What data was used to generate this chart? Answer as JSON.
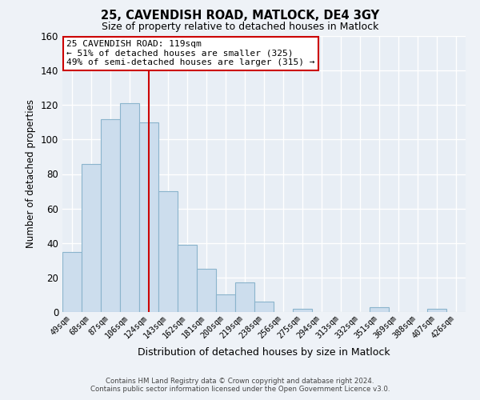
{
  "title": "25, CAVENDISH ROAD, MATLOCK, DE4 3GY",
  "subtitle": "Size of property relative to detached houses in Matlock",
  "xlabel": "Distribution of detached houses by size in Matlock",
  "ylabel": "Number of detached properties",
  "categories": [
    "49sqm",
    "68sqm",
    "87sqm",
    "106sqm",
    "124sqm",
    "143sqm",
    "162sqm",
    "181sqm",
    "200sqm",
    "219sqm",
    "238sqm",
    "256sqm",
    "275sqm",
    "294sqm",
    "313sqm",
    "332sqm",
    "351sqm",
    "369sqm",
    "388sqm",
    "407sqm",
    "426sqm"
  ],
  "values": [
    35,
    86,
    112,
    121,
    110,
    70,
    39,
    25,
    10,
    17,
    6,
    0,
    2,
    0,
    0,
    0,
    3,
    0,
    0,
    2,
    0
  ],
  "bar_color": "#ccdded",
  "bar_edge_color": "#8ab4cc",
  "highlight_index": 4,
  "highlight_line_color": "#cc0000",
  "ylim": [
    0,
    160
  ],
  "yticks": [
    0,
    20,
    40,
    60,
    80,
    100,
    120,
    140,
    160
  ],
  "annotation_title": "25 CAVENDISH ROAD: 119sqm",
  "annotation_line1": "← 51% of detached houses are smaller (325)",
  "annotation_line2": "49% of semi-detached houses are larger (315) →",
  "annotation_box_color": "#ffffff",
  "annotation_box_edge": "#cc0000",
  "footer_line1": "Contains HM Land Registry data © Crown copyright and database right 2024.",
  "footer_line2": "Contains public sector information licensed under the Open Government Licence v3.0.",
  "background_color": "#eef2f7",
  "grid_color": "#ffffff",
  "plot_bg_color": "#e8eef5"
}
